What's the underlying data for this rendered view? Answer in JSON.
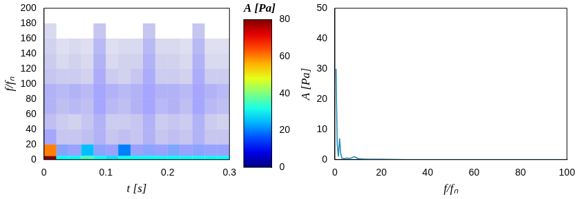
{
  "chart_data": [
    {
      "type": "heatmap",
      "x_label": "t [s]",
      "y_label": "f/fₙ",
      "xlim": [
        0,
        0.3
      ],
      "xticks": [
        0,
        0.1,
        0.2,
        0.3
      ],
      "ylim": [
        0,
        200
      ],
      "yticks": [
        0,
        20,
        40,
        60,
        80,
        100,
        120,
        140,
        160,
        180,
        200
      ],
      "grid": false,
      "t_edges": [
        0,
        0.02,
        0.04,
        0.06,
        0.08,
        0.1,
        0.12,
        0.14,
        0.16,
        0.18,
        0.2,
        0.22,
        0.24,
        0.26,
        0.28,
        0.3
      ],
      "f_edges": [
        0,
        5,
        20,
        40,
        60,
        80,
        100,
        120,
        140,
        160,
        180
      ],
      "A": [
        [
          80,
          30,
          30,
          35,
          30,
          28,
          30,
          30,
          30,
          30,
          30,
          30,
          30,
          30,
          30
        ],
        [
          60,
          15,
          12,
          25,
          14,
          12,
          20,
          12,
          14,
          12,
          16,
          12,
          14,
          12,
          12
        ],
        [
          10,
          5,
          5,
          6,
          8,
          5,
          6,
          5,
          8,
          5,
          6,
          5,
          8,
          5,
          5
        ],
        [
          6,
          4,
          3,
          5,
          8,
          4,
          4,
          5,
          8,
          4,
          5,
          4,
          8,
          4,
          3
        ],
        [
          8,
          6,
          7,
          6,
          10,
          7,
          6,
          8,
          10,
          7,
          8,
          6,
          10,
          7,
          6
        ],
        [
          8,
          7,
          8,
          7,
          10,
          8,
          7,
          8,
          10,
          8,
          8,
          7,
          10,
          8,
          7
        ],
        [
          5,
          4,
          4,
          3,
          9,
          4,
          3,
          5,
          9,
          4,
          4,
          3,
          9,
          4,
          4
        ],
        [
          4,
          2,
          3,
          2,
          8,
          2,
          3,
          3,
          8,
          3,
          3,
          2,
          8,
          2,
          2
        ],
        [
          3,
          1,
          2,
          1,
          7,
          1,
          2,
          2,
          7,
          2,
          2,
          1,
          7,
          1,
          1
        ],
        [
          2,
          0,
          0,
          0,
          5,
          0,
          0,
          0,
          5,
          0,
          0,
          0,
          5,
          0,
          0
        ]
      ],
      "colorbar": {
        "label": "A [Pa]",
        "lim": [
          0,
          80
        ],
        "ticks": [
          0,
          20,
          40,
          60,
          80
        ]
      }
    },
    {
      "type": "line",
      "x_label": "f/fₙ",
      "y_label": "A [Pa]",
      "xlim": [
        0,
        100
      ],
      "xticks": [
        0,
        20,
        40,
        60,
        80,
        100
      ],
      "ylim": [
        0,
        50
      ],
      "yticks": [
        0,
        10,
        20,
        30,
        40,
        50
      ],
      "grid": false,
      "x": [
        0.5,
        1,
        1.5,
        2,
        2.5,
        3,
        4,
        5,
        6,
        7,
        8,
        9,
        10,
        12,
        15,
        20,
        30,
        40,
        50,
        60,
        70,
        80,
        90,
        100
      ],
      "series": [
        {
          "color": "#1b86b8",
          "values": [
            30,
            5,
            1,
            7,
            2,
            0.5,
            0.3,
            0.5,
            0.4,
            0.5,
            0.9,
            0.8,
            0.3,
            0.2,
            0.1,
            0.1,
            0,
            0,
            0,
            0,
            0,
            0,
            0,
            0
          ]
        }
      ]
    }
  ]
}
